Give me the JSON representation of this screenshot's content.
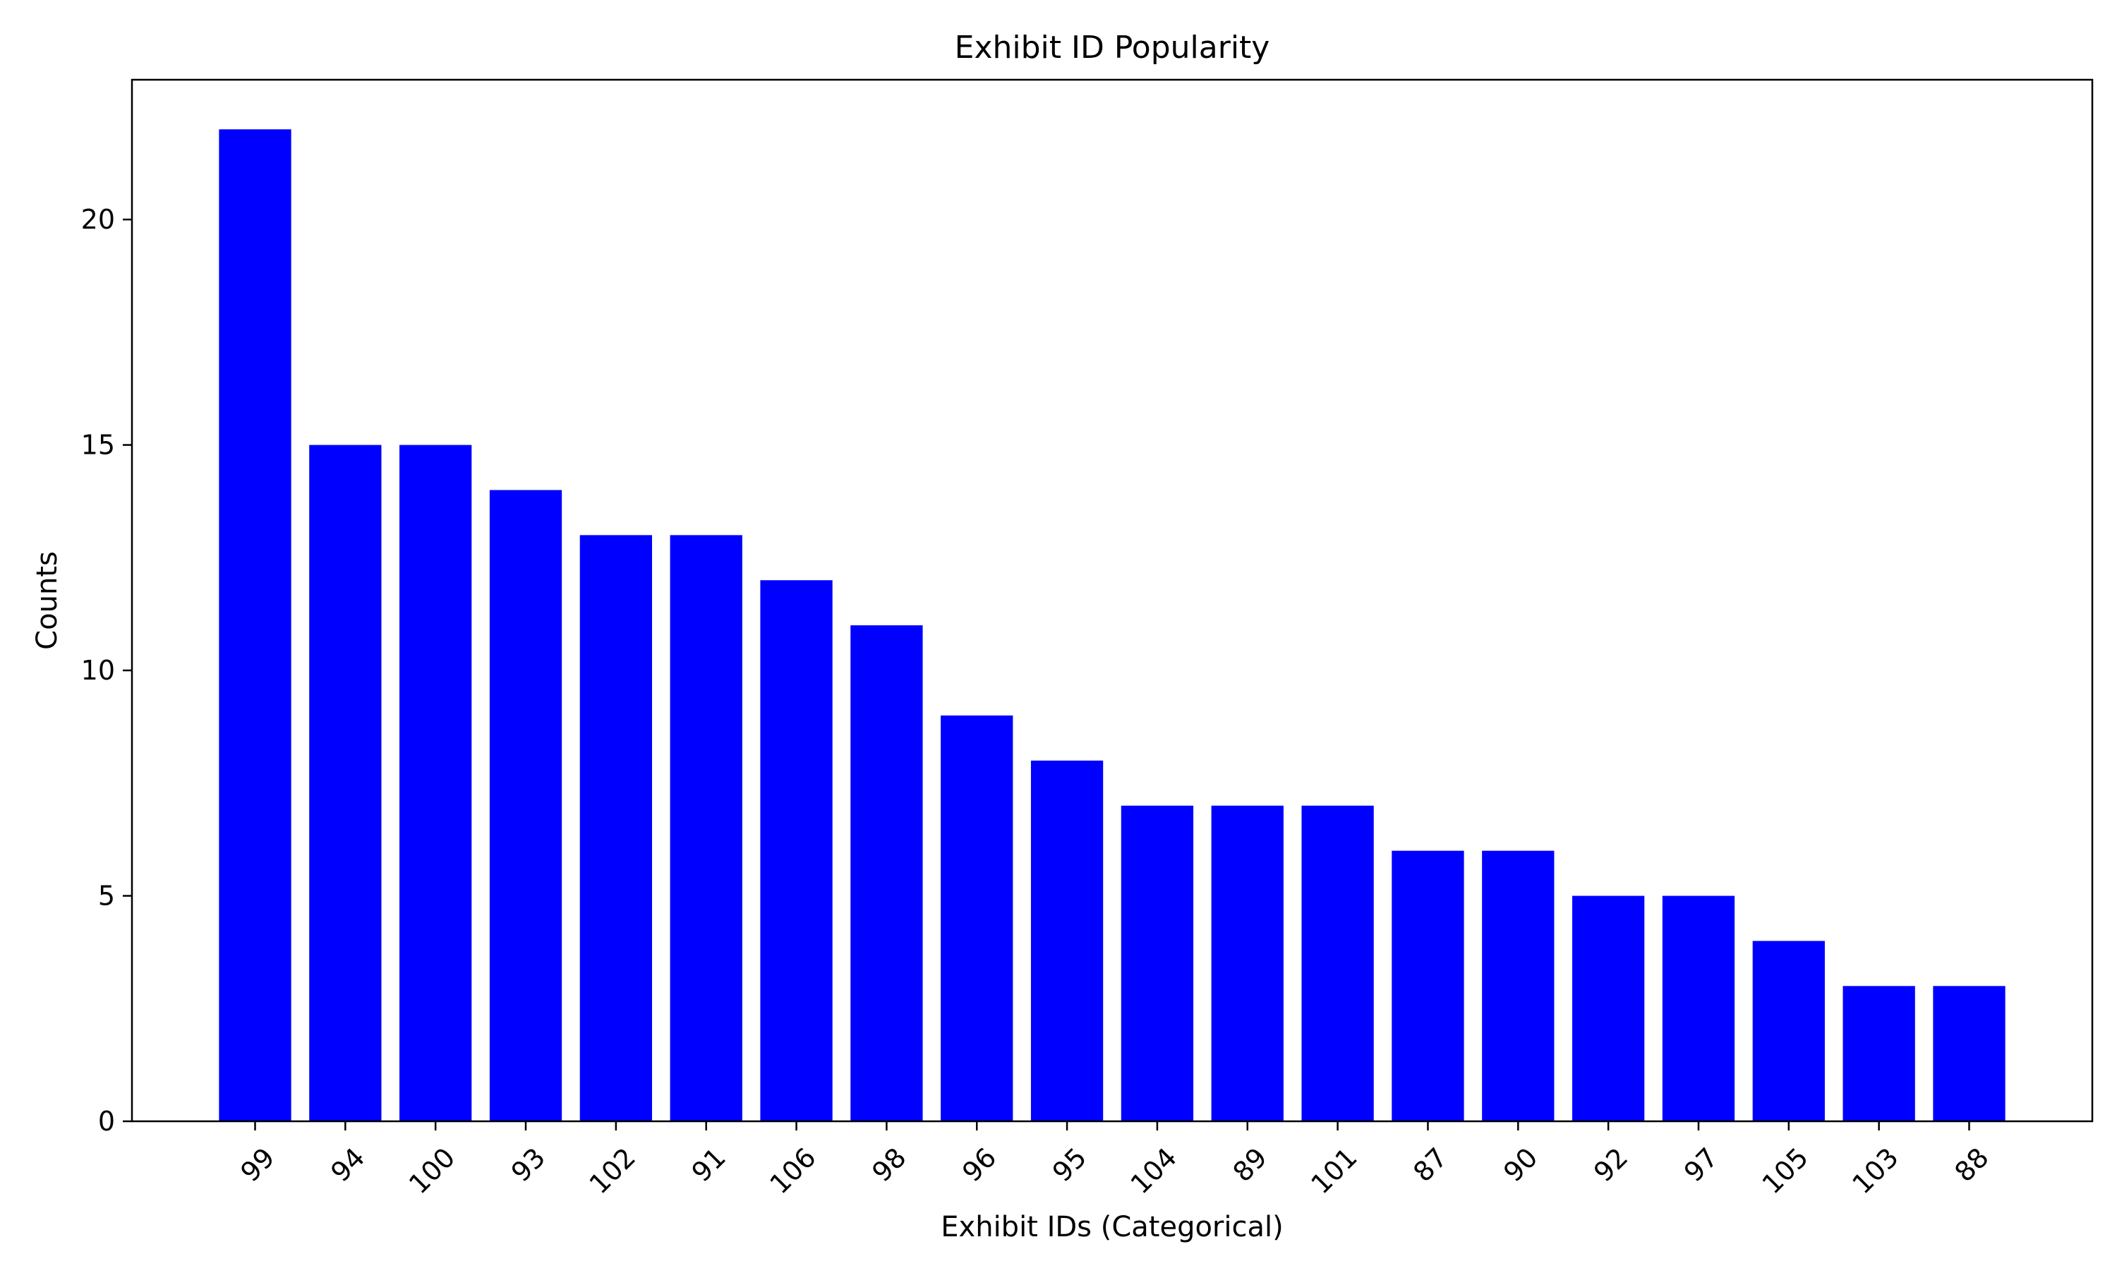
{
  "chart_data": {
    "type": "bar",
    "title": "Exhibit ID Popularity",
    "xlabel": "Exhibit IDs (Categorical)",
    "ylabel": "Counts",
    "categories": [
      "99",
      "94",
      "100",
      "93",
      "102",
      "91",
      "106",
      "98",
      "96",
      "95",
      "104",
      "89",
      "101",
      "87",
      "90",
      "92",
      "97",
      "105",
      "103",
      "88"
    ],
    "values": [
      22,
      15,
      15,
      14,
      13,
      13,
      12,
      11,
      9,
      8,
      7,
      7,
      7,
      6,
      6,
      5,
      5,
      4,
      3,
      3
    ],
    "ylim": [
      0,
      23.1
    ],
    "yticks": [
      0,
      5,
      10,
      15,
      20
    ],
    "bar_color": "#0000ff",
    "grid": false,
    "legend": "none",
    "xtick_rotation": "45 degrees"
  }
}
